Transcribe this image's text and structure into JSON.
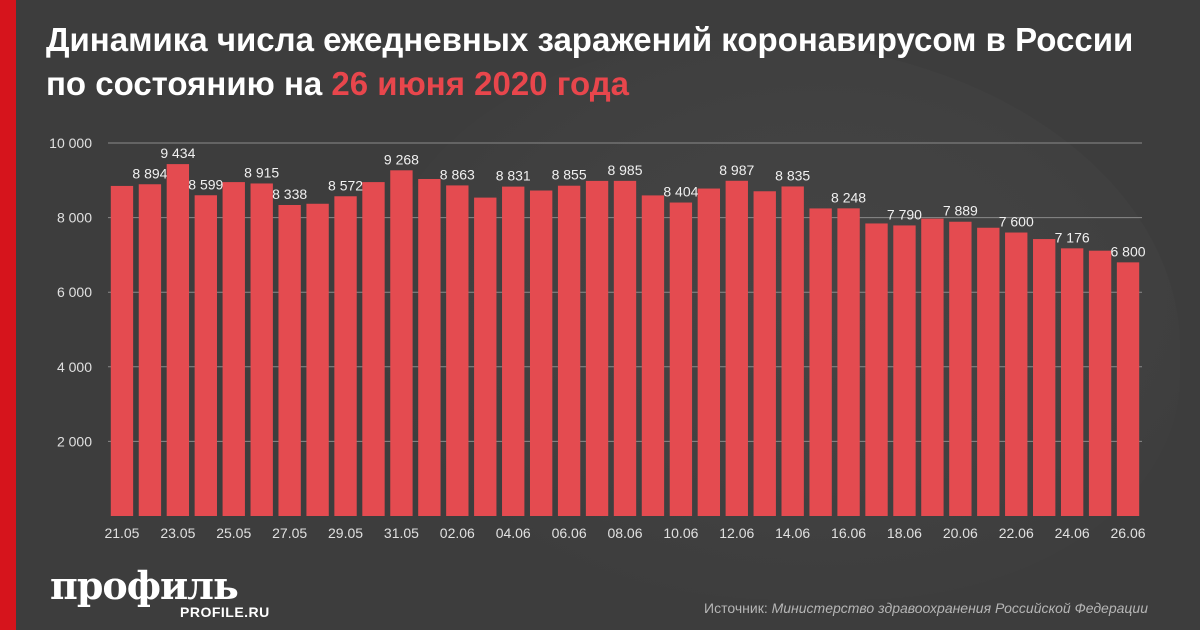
{
  "header": {
    "title_part1": "Динамика числа ежедневных заражений коронавирусом в России по состоянию на ",
    "title_highlight": "26 июня 2020 года"
  },
  "chart_data": {
    "type": "bar",
    "categories": [
      "21.05",
      "22.05",
      "23.05",
      "24.05",
      "25.05",
      "26.05",
      "27.05",
      "28.05",
      "29.05",
      "30.05",
      "31.05",
      "01.06",
      "02.06",
      "03.06",
      "04.06",
      "05.06",
      "06.06",
      "07.06",
      "08.06",
      "09.06",
      "10.06",
      "11.06",
      "12.06",
      "13.06",
      "14.06",
      "15.06",
      "16.06",
      "17.06",
      "18.06",
      "19.06",
      "20.06",
      "21.06",
      "22.06",
      "23.06",
      "24.06",
      "25.06",
      "26.06"
    ],
    "values": [
      8849,
      8894,
      9434,
      8599,
      8952,
      8915,
      8338,
      8371,
      8572,
      8952,
      9268,
      9035,
      8863,
      8536,
      8831,
      8726,
      8855,
      8984,
      8985,
      8595,
      8404,
      8779,
      8987,
      8706,
      8835,
      8246,
      8248,
      7843,
      7790,
      7972,
      7889,
      7728,
      7600,
      7425,
      7176,
      7113,
      6800
    ],
    "labeled_indices": [
      1,
      2,
      3,
      5,
      6,
      8,
      10,
      12,
      14,
      16,
      18,
      20,
      22,
      24,
      26,
      28,
      30,
      32,
      34,
      36
    ],
    "labels": [
      "8 894",
      "9 434",
      "8 599",
      "8 915",
      "8 338",
      "8 572",
      "9 268",
      "8 863",
      "8 831",
      "8 855",
      "8 985",
      "8 404",
      "8 987",
      "8 835",
      "8 248",
      "7 790",
      "7 889",
      "7 600",
      "7 176",
      "6 800"
    ],
    "x_tick_labels": [
      "21.05",
      "23.05",
      "25.05",
      "27.05",
      "29.05",
      "31.05",
      "02.06",
      "04.06",
      "06.06",
      "08.06",
      "10.06",
      "12.06",
      "14.06",
      "16.06",
      "18.06",
      "20.06",
      "22.06",
      "24.06",
      "26.06"
    ],
    "y_ticks": [
      2000,
      4000,
      6000,
      8000,
      10000
    ],
    "y_tick_labels": [
      "2 000",
      "4 000",
      "6 000",
      "8 000",
      "10 000"
    ],
    "ylim": [
      0,
      10000
    ],
    "grid": true,
    "bar_color": "#e44b50"
  },
  "branding": {
    "logo": "профиль",
    "logo_sub": "PROFILE.RU"
  },
  "footer": {
    "source_label": "Источник: ",
    "source_text": "Министерство здравоохранения Российской Федерации"
  }
}
